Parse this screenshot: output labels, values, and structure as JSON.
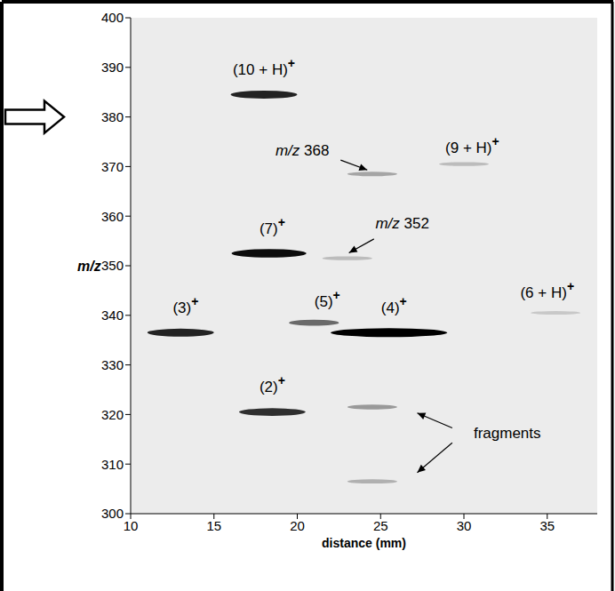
{
  "chart_data": {
    "type": "scatter",
    "x_label": "distance (mm)",
    "y_label": "m/z",
    "xlim": [
      10,
      38
    ],
    "xticks": [
      10,
      15,
      20,
      25,
      30,
      35
    ],
    "ylim": [
      300,
      400
    ],
    "yticks": [
      300,
      310,
      320,
      330,
      340,
      350,
      360,
      370,
      380,
      390,
      400
    ],
    "grid": false,
    "color": "#000000",
    "spots": {
      "x": [
        18,
        24.5,
        30,
        18.3,
        23,
        13,
        21,
        25.5,
        35.5,
        18.5,
        24.5,
        24.5
      ],
      "y": [
        384.5,
        368.5,
        370.5,
        352.5,
        351.5,
        336.5,
        338.5,
        336.5,
        340.5,
        320.5,
        321.5,
        306.5
      ],
      "width": [
        4,
        3,
        3,
        4.5,
        3,
        4,
        3,
        7,
        3,
        4,
        3,
        3
      ],
      "intensity": [
        0.85,
        0.3,
        0.2,
        0.95,
        0.2,
        0.85,
        0.55,
        1.0,
        0.15,
        0.8,
        0.35,
        0.25
      ]
    },
    "annotations": [
      {
        "text": "(10 + H)+",
        "x": 18,
        "y": 388.5
      },
      {
        "text": "m/z 368",
        "x": 20.3,
        "y": 372.2,
        "arrows": [
          {
            "from": [
              22.6,
              371.3
            ],
            "to": [
              24.2,
              369.3
            ]
          }
        ]
      },
      {
        "text": "(9 + H)+",
        "x": 30.5,
        "y": 372.8
      },
      {
        "text": "(7)+",
        "x": 18.5,
        "y": 356.5
      },
      {
        "text": "m/z 352",
        "x": 26.3,
        "y": 357.5,
        "arrows": [
          {
            "from": [
              24.6,
              355.4
            ],
            "to": [
              23.1,
              352.6
            ]
          }
        ]
      },
      {
        "text": "(3)+",
        "x": 13.3,
        "y": 340.5
      },
      {
        "text": "(5)+",
        "x": 21.8,
        "y": 341.8
      },
      {
        "text": "(4)+",
        "x": 25.8,
        "y": 340.5
      },
      {
        "text": "(6 + H)+",
        "x": 35,
        "y": 343.6
      },
      {
        "text": "(2)+",
        "x": 18.5,
        "y": 324.5
      },
      {
        "text": "fragments",
        "x": 32.6,
        "y": 315.3,
        "arrows": [
          {
            "from": [
              29.3,
              317.3
            ],
            "to": [
              27.2,
              320.3
            ]
          },
          {
            "from": [
              29.3,
              314.3
            ],
            "to": [
              27.2,
              308.3
            ]
          }
        ]
      }
    ]
  }
}
